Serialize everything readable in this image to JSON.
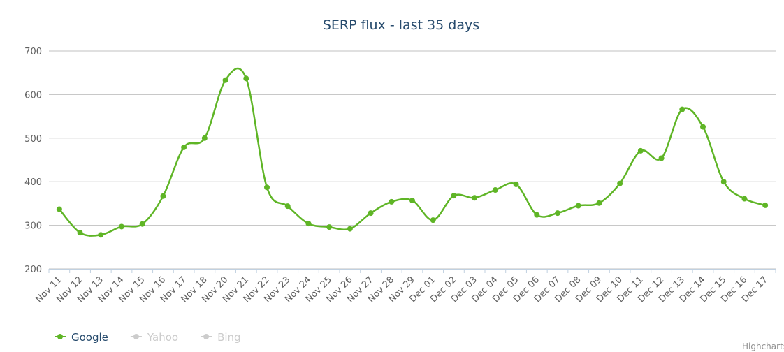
{
  "chart_data": {
    "type": "spline",
    "title": "SERP flux - last 35 days",
    "categories": [
      "Nov 11",
      "Nov 12",
      "Nov 13",
      "Nov 14",
      "Nov 15",
      "Nov 16",
      "Nov 17",
      "Nov 18",
      "Nov 20",
      "Nov 21",
      "Nov 22",
      "Nov 23",
      "Nov 24",
      "Nov 25",
      "Nov 26",
      "Nov 27",
      "Nov 28",
      "Nov 29",
      "Dec 01",
      "Dec 02",
      "Dec 03",
      "Dec 04",
      "Dec 05",
      "Dec 06",
      "Dec 07",
      "Dec 08",
      "Dec 09",
      "Dec 10",
      "Dec 11",
      "Dec 12",
      "Dec 13",
      "Dec 14",
      "Dec 15",
      "Dec 16",
      "Dec 17"
    ],
    "series": [
      {
        "name": "Google",
        "color": "#5fb526",
        "visible": true,
        "values": [
          337,
          283,
          278,
          297,
          303,
          367,
          479,
          500,
          633,
          637,
          387,
          344,
          304,
          296,
          292,
          328,
          354,
          357,
          312,
          368,
          363,
          381,
          394,
          324,
          328,
          345,
          351,
          396,
          471,
          454,
          566,
          526,
          400,
          361,
          346
        ]
      },
      {
        "name": "Yahoo",
        "color": "#cccccc",
        "visible": false
      },
      {
        "name": "Bing",
        "color": "#cccccc",
        "visible": false
      }
    ],
    "ylim": [
      200,
      700
    ],
    "yticks": [
      200,
      300,
      400,
      500,
      600,
      700
    ],
    "grid": true,
    "credits": "Highcharts"
  }
}
